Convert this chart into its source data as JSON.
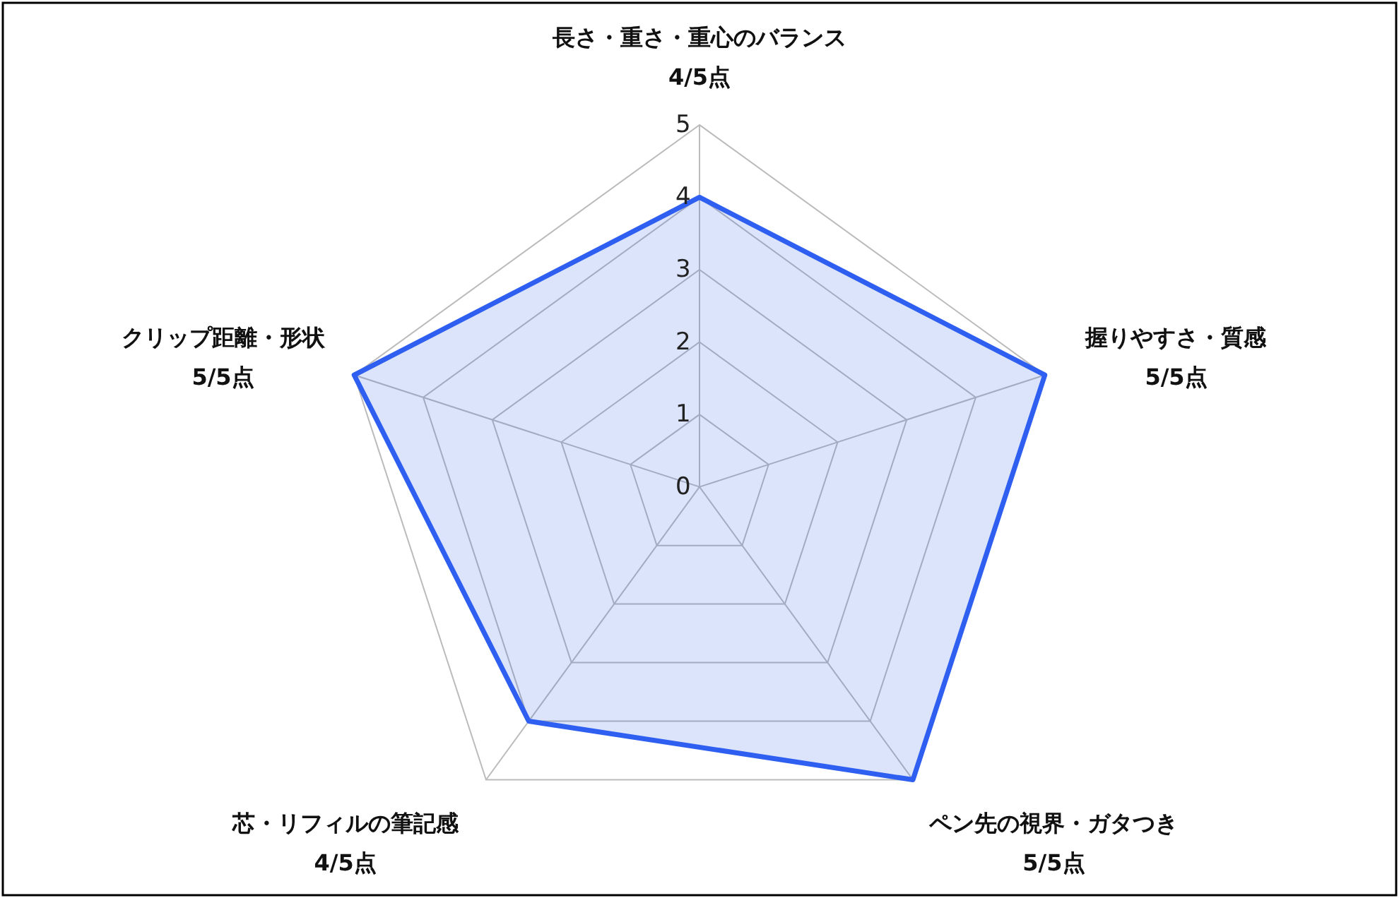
{
  "chart_data": {
    "type": "radar",
    "categories": [
      "長さ・重さ・重心のバランス",
      "握りやすさ・質感",
      "ペン先の視界・ガタつき",
      "芯・リフィルの筆記感",
      "クリップ距離・形状"
    ],
    "series": [
      {
        "color": "#2f5ff0",
        "values": [
          4,
          5,
          5,
          4,
          5
        ]
      }
    ],
    "value_labels": [
      "4/5点",
      "5/5点",
      "5/5点",
      "4/5点",
      "5/5点"
    ],
    "ylim": [
      0,
      5
    ],
    "yticks": [
      0,
      1,
      2,
      3,
      4,
      5
    ],
    "grid": true
  }
}
